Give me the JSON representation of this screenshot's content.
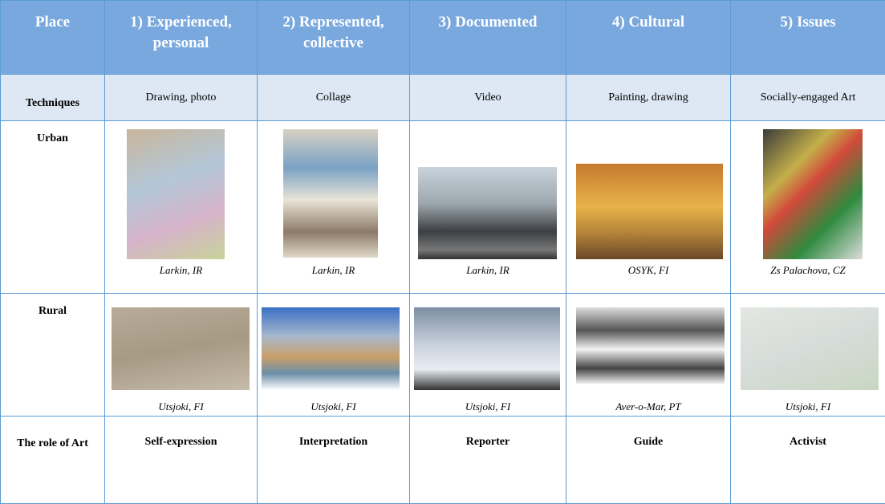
{
  "table": {
    "header": [
      "Place",
      "1) Experienced, personal",
      "2) Represented, collective",
      "3) Documented",
      "4) Cultural",
      "5) Issues"
    ],
    "rows": [
      {
        "label": "Techniques",
        "cells": [
          "Drawing, photo",
          "Collage",
          "Video",
          "Painting, drawing",
          "Socially-engaged Art"
        ]
      },
      {
        "label": "Urban",
        "cells": [
          "Larkin, IR",
          "Larkin, IR",
          "Larkin, IR",
          "OSYK, FI",
          "Zs Palachova, CZ"
        ]
      },
      {
        "label": "Rural",
        "cells": [
          "Utsjoki, FI",
          "Utsjoki, FI",
          "Utsjoki, FI",
          "Aver-o-Mar, PT",
          "Utsjoki, FI"
        ]
      },
      {
        "label": "The role of Art",
        "cells": [
          "Self-expression",
          "Interpretation",
          "Reporter",
          "Guide",
          "Activist"
        ]
      }
    ]
  }
}
